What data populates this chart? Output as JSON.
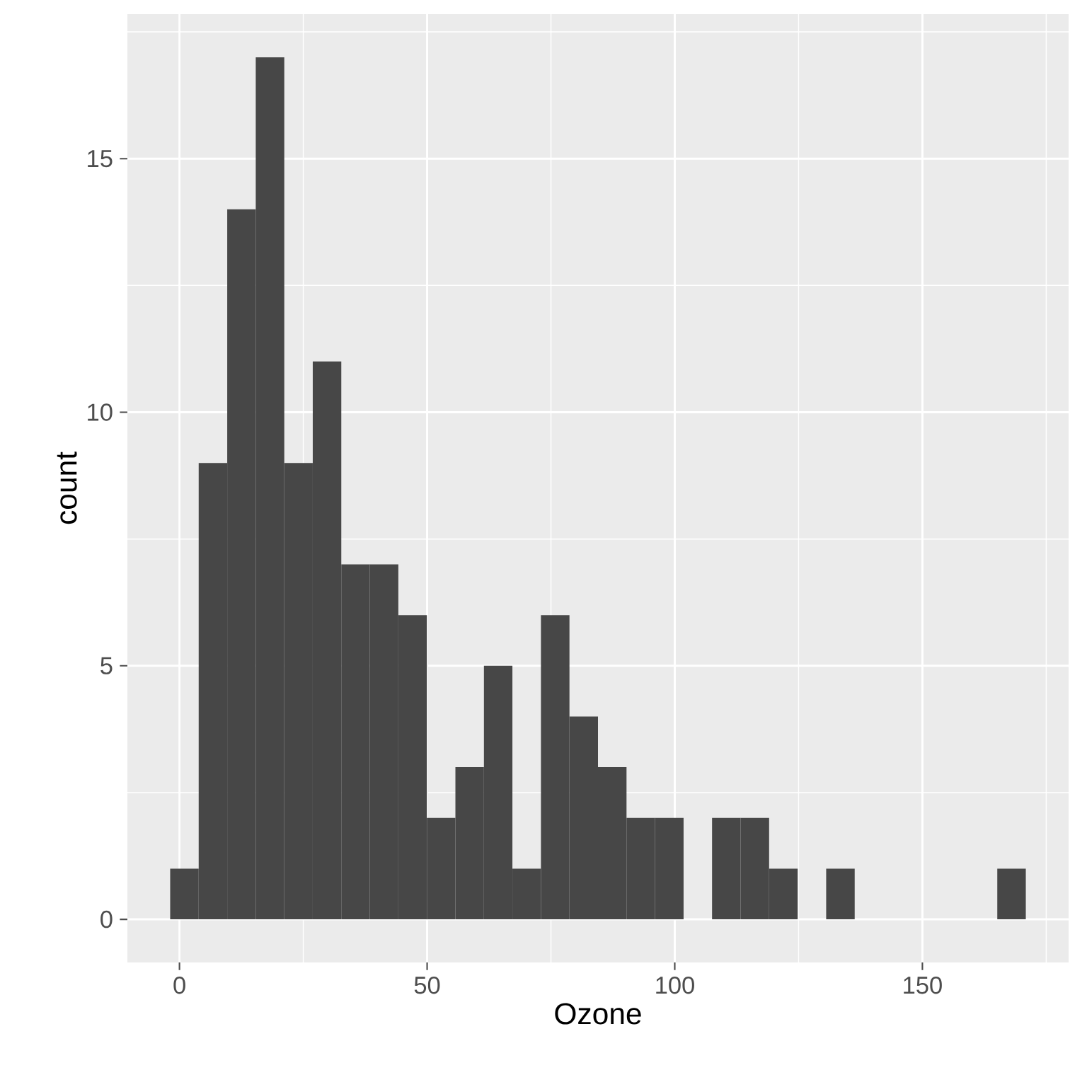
{
  "chart_data": {
    "type": "histogram",
    "xlabel": "Ozone",
    "ylabel": "count",
    "bins": [
      -1.88,
      3.88,
      9.64,
      15.4,
      21.16,
      26.91,
      32.67,
      38.43,
      44.19,
      49.95,
      55.71,
      61.47,
      67.22,
      72.98,
      78.74,
      84.5,
      90.26,
      96.02,
      101.78,
      107.53,
      113.29,
      119.05,
      124.81,
      130.57,
      136.33,
      142.09,
      147.84,
      153.6,
      159.36,
      165.12,
      170.88
    ],
    "values": [
      1,
      9,
      14,
      17,
      9,
      11,
      7,
      7,
      6,
      2,
      3,
      5,
      1,
      6,
      4,
      3,
      2,
      2,
      0,
      2,
      2,
      1,
      0,
      1,
      0,
      0,
      0,
      0,
      0,
      1
    ],
    "color": "#474747",
    "xlim": [
      -10.52,
      179.52
    ],
    "ylim": [
      -0.85,
      17.85
    ],
    "xticks": [
      0,
      50,
      100,
      150
    ],
    "yticks": [
      0,
      5,
      10,
      15
    ],
    "grid": true
  }
}
